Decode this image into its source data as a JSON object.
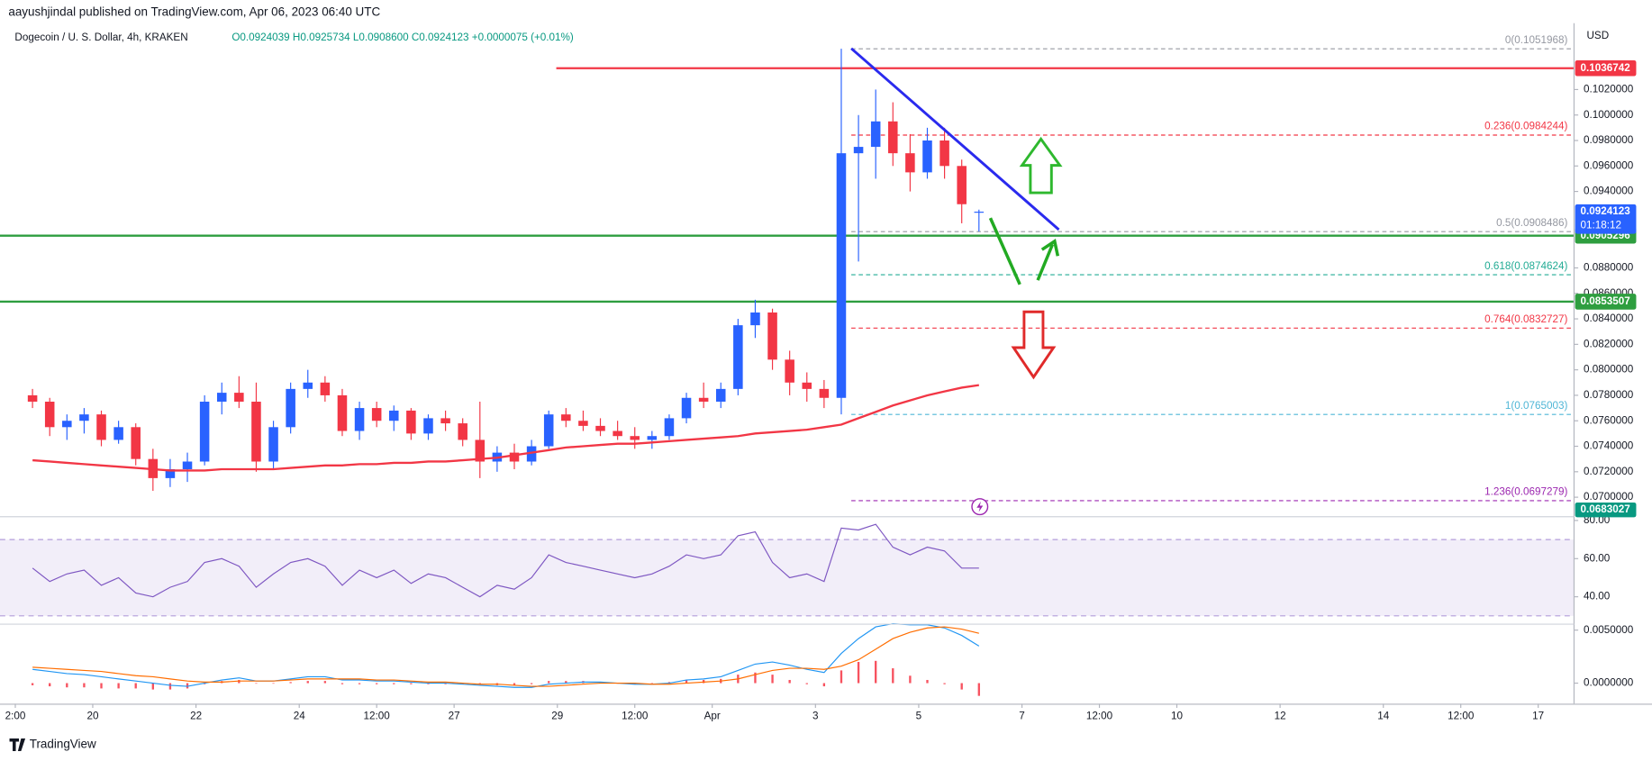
{
  "header": {
    "publisher": "aayushjindal published on TradingView.com, Apr 06, 2023 06:40 UTC",
    "footer": "TradingView"
  },
  "chart_data": {
    "type": "candlestick",
    "title": "Dogecoin / U. S. Dollar, 4h, KRAKEN",
    "ohlc_text": "O0.0924039 H0.0925734 L0.0908600 C0.0924123 +0.0000075 (+0.01%)",
    "currency": "USD",
    "up_color": "#2962ff",
    "down_color": "#f23645",
    "x": [
      "2023-03-18T20:00",
      "2023-03-19T04:00",
      "2023-03-19T12:00",
      "2023-03-19T20:00",
      "2023-03-20T04:00",
      "2023-03-20T12:00",
      "2023-03-20T20:00",
      "2023-03-21T04:00",
      "2023-03-21T12:00",
      "2023-03-21T20:00",
      "2023-03-22T04:00",
      "2023-03-22T12:00",
      "2023-03-22T20:00",
      "2023-03-23T04:00",
      "2023-03-23T12:00",
      "2023-03-23T20:00",
      "2023-03-24T04:00",
      "2023-03-24T12:00",
      "2023-03-24T20:00",
      "2023-03-25T04:00",
      "2023-03-25T12:00",
      "2023-03-25T20:00",
      "2023-03-26T04:00",
      "2023-03-26T12:00",
      "2023-03-26T20:00",
      "2023-03-27T04:00",
      "2023-03-27T12:00",
      "2023-03-27T20:00",
      "2023-03-28T04:00",
      "2023-03-28T12:00",
      "2023-03-28T20:00",
      "2023-03-29T04:00",
      "2023-03-29T12:00",
      "2023-03-29T20:00",
      "2023-03-30T04:00",
      "2023-03-30T12:00",
      "2023-03-30T20:00",
      "2023-03-31T04:00",
      "2023-03-31T12:00",
      "2023-03-31T20:00",
      "2023-04-01T04:00",
      "2023-04-01T12:00",
      "2023-04-01T20:00",
      "2023-04-02T04:00",
      "2023-04-02T12:00",
      "2023-04-02T20:00",
      "2023-04-03T04:00",
      "2023-04-03T12:00",
      "2023-04-03T20:00",
      "2023-04-04T04:00",
      "2023-04-04T12:00",
      "2023-04-04T20:00",
      "2023-04-05T04:00",
      "2023-04-05T12:00",
      "2023-04-05T20:00",
      "2023-04-06T04:00"
    ],
    "open": [
      0.078,
      0.0775,
      0.0755,
      0.076,
      0.0765,
      0.0745,
      0.0755,
      0.073,
      0.0715,
      0.0722,
      0.0728,
      0.0775,
      0.0782,
      0.0775,
      0.0728,
      0.0755,
      0.0785,
      0.079,
      0.078,
      0.0752,
      0.077,
      0.076,
      0.0768,
      0.075,
      0.0762,
      0.0758,
      0.0745,
      0.0728,
      0.0735,
      0.0728,
      0.074,
      0.0765,
      0.076,
      0.0756,
      0.0752,
      0.0748,
      0.0745,
      0.0748,
      0.0762,
      0.0778,
      0.0775,
      0.0785,
      0.0835,
      0.0845,
      0.0808,
      0.079,
      0.0785,
      0.0778,
      0.097,
      0.0975,
      0.0995,
      0.097,
      0.0955,
      0.098,
      0.096,
      0.0924039
    ],
    "high": [
      0.0785,
      0.0778,
      0.0765,
      0.077,
      0.0768,
      0.076,
      0.0758,
      0.0738,
      0.073,
      0.0735,
      0.078,
      0.079,
      0.0795,
      0.079,
      0.076,
      0.079,
      0.08,
      0.0795,
      0.0785,
      0.0775,
      0.0775,
      0.0772,
      0.077,
      0.0765,
      0.0768,
      0.0762,
      0.0775,
      0.074,
      0.0742,
      0.0745,
      0.0768,
      0.077,
      0.0768,
      0.0762,
      0.076,
      0.0755,
      0.0752,
      0.0765,
      0.0782,
      0.079,
      0.079,
      0.084,
      0.0855,
      0.0848,
      0.0815,
      0.0798,
      0.0792,
      0.1052,
      0.1,
      0.102,
      0.101,
      0.0985,
      0.099,
      0.099,
      0.0965,
      0.0925734
    ],
    "low": [
      0.077,
      0.0748,
      0.0745,
      0.075,
      0.074,
      0.0742,
      0.0725,
      0.0705,
      0.0708,
      0.0712,
      0.0725,
      0.0765,
      0.077,
      0.072,
      0.0722,
      0.075,
      0.0778,
      0.0775,
      0.0748,
      0.0745,
      0.0755,
      0.0752,
      0.0745,
      0.0745,
      0.0752,
      0.074,
      0.0715,
      0.072,
      0.0722,
      0.0725,
      0.0738,
      0.0755,
      0.0752,
      0.0748,
      0.0745,
      0.0738,
      0.0738,
      0.0745,
      0.0758,
      0.077,
      0.077,
      0.078,
      0.0825,
      0.08,
      0.078,
      0.0775,
      0.077,
      0.0765,
      0.0885,
      0.095,
      0.096,
      0.094,
      0.095,
      0.095,
      0.0915,
      0.09086
    ],
    "close": [
      0.0775,
      0.0755,
      0.076,
      0.0765,
      0.0745,
      0.0755,
      0.073,
      0.0715,
      0.0722,
      0.0728,
      0.0775,
      0.0782,
      0.0775,
      0.0728,
      0.0755,
      0.0785,
      0.079,
      0.078,
      0.0752,
      0.077,
      0.076,
      0.0768,
      0.075,
      0.0762,
      0.0758,
      0.0745,
      0.0728,
      0.0735,
      0.0728,
      0.074,
      0.0765,
      0.076,
      0.0756,
      0.0752,
      0.0748,
      0.0745,
      0.0748,
      0.0762,
      0.0778,
      0.0775,
      0.0785,
      0.0835,
      0.0845,
      0.0808,
      0.079,
      0.0785,
      0.0778,
      0.097,
      0.0975,
      0.0995,
      0.097,
      0.0955,
      0.098,
      0.096,
      0.093,
      0.0924123
    ],
    "ema": {
      "color": "#f23645",
      "values": [
        0.0729,
        0.0728,
        0.0727,
        0.0726,
        0.0725,
        0.0724,
        0.0723,
        0.0722,
        0.0721,
        0.0721,
        0.0721,
        0.0722,
        0.0722,
        0.0722,
        0.0722,
        0.0723,
        0.0724,
        0.0725,
        0.0725,
        0.0726,
        0.0726,
        0.0727,
        0.0727,
        0.0728,
        0.0728,
        0.0729,
        0.073,
        0.0731,
        0.0733,
        0.0735,
        0.0737,
        0.0739,
        0.074,
        0.0741,
        0.0742,
        0.0742,
        0.0743,
        0.0744,
        0.0745,
        0.0746,
        0.0747,
        0.0748,
        0.075,
        0.0751,
        0.0752,
        0.0753,
        0.0755,
        0.0757,
        0.0762,
        0.0767,
        0.0772,
        0.0776,
        0.078,
        0.0783,
        0.0786,
        0.0788
      ]
    },
    "xlim": [
      "2023-03-18T04:53",
      "2023-04-17T16:10"
    ],
    "xticks": [
      {
        "value": "2023-03-18T12:00",
        "label": "2:00"
      },
      {
        "value": "2023-03-20T00:00",
        "label": "20"
      },
      {
        "value": "2023-03-22T00:00",
        "label": "22"
      },
      {
        "value": "2023-03-24T00:00",
        "label": "24"
      },
      {
        "value": "2023-03-25T12:00",
        "label": "12:00"
      },
      {
        "value": "2023-03-27T00:00",
        "label": "27"
      },
      {
        "value": "2023-03-29T00:00",
        "label": "29"
      },
      {
        "value": "2023-03-30T12:00",
        "label": "12:00"
      },
      {
        "value": "2023-04-01T00:00",
        "label": "Apr"
      },
      {
        "value": "2023-04-03T00:00",
        "label": "3"
      },
      {
        "value": "2023-04-05T00:00",
        "label": "5"
      },
      {
        "value": "2023-04-07T00:00",
        "label": "7"
      },
      {
        "value": "2023-04-08T12:00",
        "label": "12:00"
      },
      {
        "value": "2023-04-10T00:00",
        "label": "10"
      },
      {
        "value": "2023-04-12T00:00",
        "label": "12"
      },
      {
        "value": "2023-04-14T00:00",
        "label": "14"
      },
      {
        "value": "2023-04-15T12:00",
        "label": "12:00"
      },
      {
        "value": "2023-04-17T00:00",
        "label": "17"
      }
    ],
    "ylim": [
      0.068512,
      0.107209
    ],
    "yticks": [
      {
        "value": 0.102,
        "label": "0.1020000"
      },
      {
        "value": 0.1,
        "label": "0.1000000"
      },
      {
        "value": 0.098,
        "label": "0.0980000"
      },
      {
        "value": 0.096,
        "label": "0.0960000"
      },
      {
        "value": 0.094,
        "label": "0.0940000"
      },
      {
        "value": 0.088,
        "label": "0.0880000"
      },
      {
        "value": 0.086,
        "label": "0.0860000"
      },
      {
        "value": 0.084,
        "label": "0.0840000"
      },
      {
        "value": 0.082,
        "label": "0.0820000"
      },
      {
        "value": 0.08,
        "label": "0.0800000"
      },
      {
        "value": 0.078,
        "label": "0.0780000"
      },
      {
        "value": 0.076,
        "label": "0.0760000"
      },
      {
        "value": 0.074,
        "label": "0.0740000"
      },
      {
        "value": 0.072,
        "label": "0.0720000"
      },
      {
        "value": 0.07,
        "label": "0.0700000"
      }
    ],
    "levels": [
      {
        "value": 0.1036742,
        "color": "#f23645"
      },
      {
        "value": 0.0905296,
        "color": "#2e9e3f"
      },
      {
        "value": 0.0853507,
        "color": "#2e9e3f"
      }
    ],
    "countdown": "01:18:12",
    "low_label": {
      "value": 0.0683027,
      "color": "#089981"
    },
    "fib": [
      {
        "value": 0.1051968,
        "label": "0(0.1051968)",
        "color": "#9598a1"
      },
      {
        "value": 0.0984244,
        "label": "0.236(0.0984244)",
        "color": "#f23645"
      },
      {
        "value": 0.0908486,
        "label": "0.5(0.0908486)",
        "color": "#9598a1"
      },
      {
        "value": 0.0874624,
        "label": "0.618(0.0874624)",
        "color": "#22ab94"
      },
      {
        "value": 0.0832727,
        "label": "0.764(0.0832727)",
        "color": "#f23645"
      },
      {
        "value": 0.0765003,
        "label": "1(0.0765003)",
        "color": "#4fb6d6"
      },
      {
        "value": 0.0697279,
        "label": "1.236(0.0697279)",
        "color": "#9c27b0"
      }
    ],
    "rsi": {
      "color": "#7e57c2",
      "values": [
        55,
        48,
        52,
        54,
        46,
        50,
        42,
        40,
        45,
        48,
        58,
        60,
        56,
        45,
        52,
        58,
        60,
        56,
        46,
        54,
        50,
        54,
        47,
        52,
        50,
        45,
        40,
        46,
        44,
        50,
        62,
        58,
        56,
        54,
        52,
        50,
        52,
        56,
        62,
        60,
        62,
        72,
        74,
        58,
        50,
        52,
        48,
        76,
        75,
        78,
        66,
        62,
        66,
        64,
        55,
        55
      ],
      "ylim": [
        25.92,
        82.25
      ],
      "band": [
        30,
        70
      ],
      "yticks": [
        {
          "value": 80,
          "label": "80.00"
        },
        {
          "value": 60,
          "label": "60.00"
        },
        {
          "value": 40,
          "label": "40.00"
        }
      ]
    },
    "macd": {
      "macd_color": "#2196f3",
      "signal_color": "#ff6d00",
      "hist_color": "#f7525f",
      "macd": [
        0.0013,
        0.0011,
        0.0009,
        0.0008,
        0.0006,
        0.0004,
        0.0002,
        0.0,
        -0.0002,
        -0.0003,
        0.0,
        0.0003,
        0.0005,
        0.0002,
        0.0002,
        0.0004,
        0.0006,
        0.0006,
        0.0003,
        0.0003,
        0.0002,
        0.0002,
        0.0001,
        0.0,
        0.0,
        -0.0001,
        -0.0002,
        -0.0003,
        -0.0004,
        -0.0004,
        -0.0001,
        0.0,
        0.0001,
        0.0001,
        0.0,
        -0.0001,
        -0.0001,
        0.0,
        0.0003,
        0.0004,
        0.0006,
        0.0012,
        0.0018,
        0.002,
        0.0017,
        0.0013,
        0.001,
        0.0028,
        0.0042,
        0.0053,
        0.0056,
        0.0055,
        0.0055,
        0.0052,
        0.0045,
        0.0035
      ],
      "signal": [
        0.0015,
        0.0014,
        0.0013,
        0.0012,
        0.0011,
        0.0009,
        0.0007,
        0.0006,
        0.0004,
        0.0002,
        0.0001,
        0.0001,
        0.0002,
        0.0002,
        0.0002,
        0.0003,
        0.0004,
        0.0004,
        0.0004,
        0.0004,
        0.0003,
        0.0003,
        0.0002,
        0.0001,
        0.0001,
        0.0,
        -0.0001,
        -0.0001,
        -0.0002,
        -0.0003,
        -0.0003,
        -0.0002,
        -0.0001,
        0.0,
        0.0,
        0.0,
        -0.0001,
        -0.0001,
        0.0,
        0.0001,
        0.0002,
        0.0004,
        0.0008,
        0.0012,
        0.0014,
        0.0014,
        0.0013,
        0.0016,
        0.0022,
        0.0032,
        0.0042,
        0.0048,
        0.0052,
        0.0053,
        0.0051,
        0.0047
      ],
      "histogram": [
        -0.0002,
        -0.0003,
        -0.0004,
        -0.0004,
        -0.0005,
        -0.0005,
        -0.0005,
        -0.0006,
        -0.0006,
        -0.0005,
        -0.0001,
        0.0002,
        0.0003,
        0.0,
        0.0,
        0.0001,
        0.0002,
        0.0002,
        -0.0001,
        -0.0001,
        -0.0001,
        -0.0001,
        -0.0001,
        -0.0001,
        -0.0001,
        -0.0001,
        -0.0001,
        -0.0002,
        -0.0002,
        -0.0001,
        0.0002,
        0.0002,
        0.0002,
        0.0001,
        0.0,
        -0.0001,
        0.0,
        0.0001,
        0.0003,
        0.0003,
        0.0004,
        0.0008,
        0.001,
        0.0008,
        0.0003,
        -0.0001,
        -0.0003,
        0.0012,
        0.002,
        0.0021,
        0.0014,
        0.0007,
        0.0003,
        -0.0001,
        -0.0006,
        -0.0012
      ],
      "ylim": [
        -0.001939,
        0.005612
      ],
      "yticks": [
        {
          "value": 0.005,
          "label": "0.0050000"
        },
        {
          "value": 0,
          "label": "0.0000000"
        }
      ]
    }
  }
}
